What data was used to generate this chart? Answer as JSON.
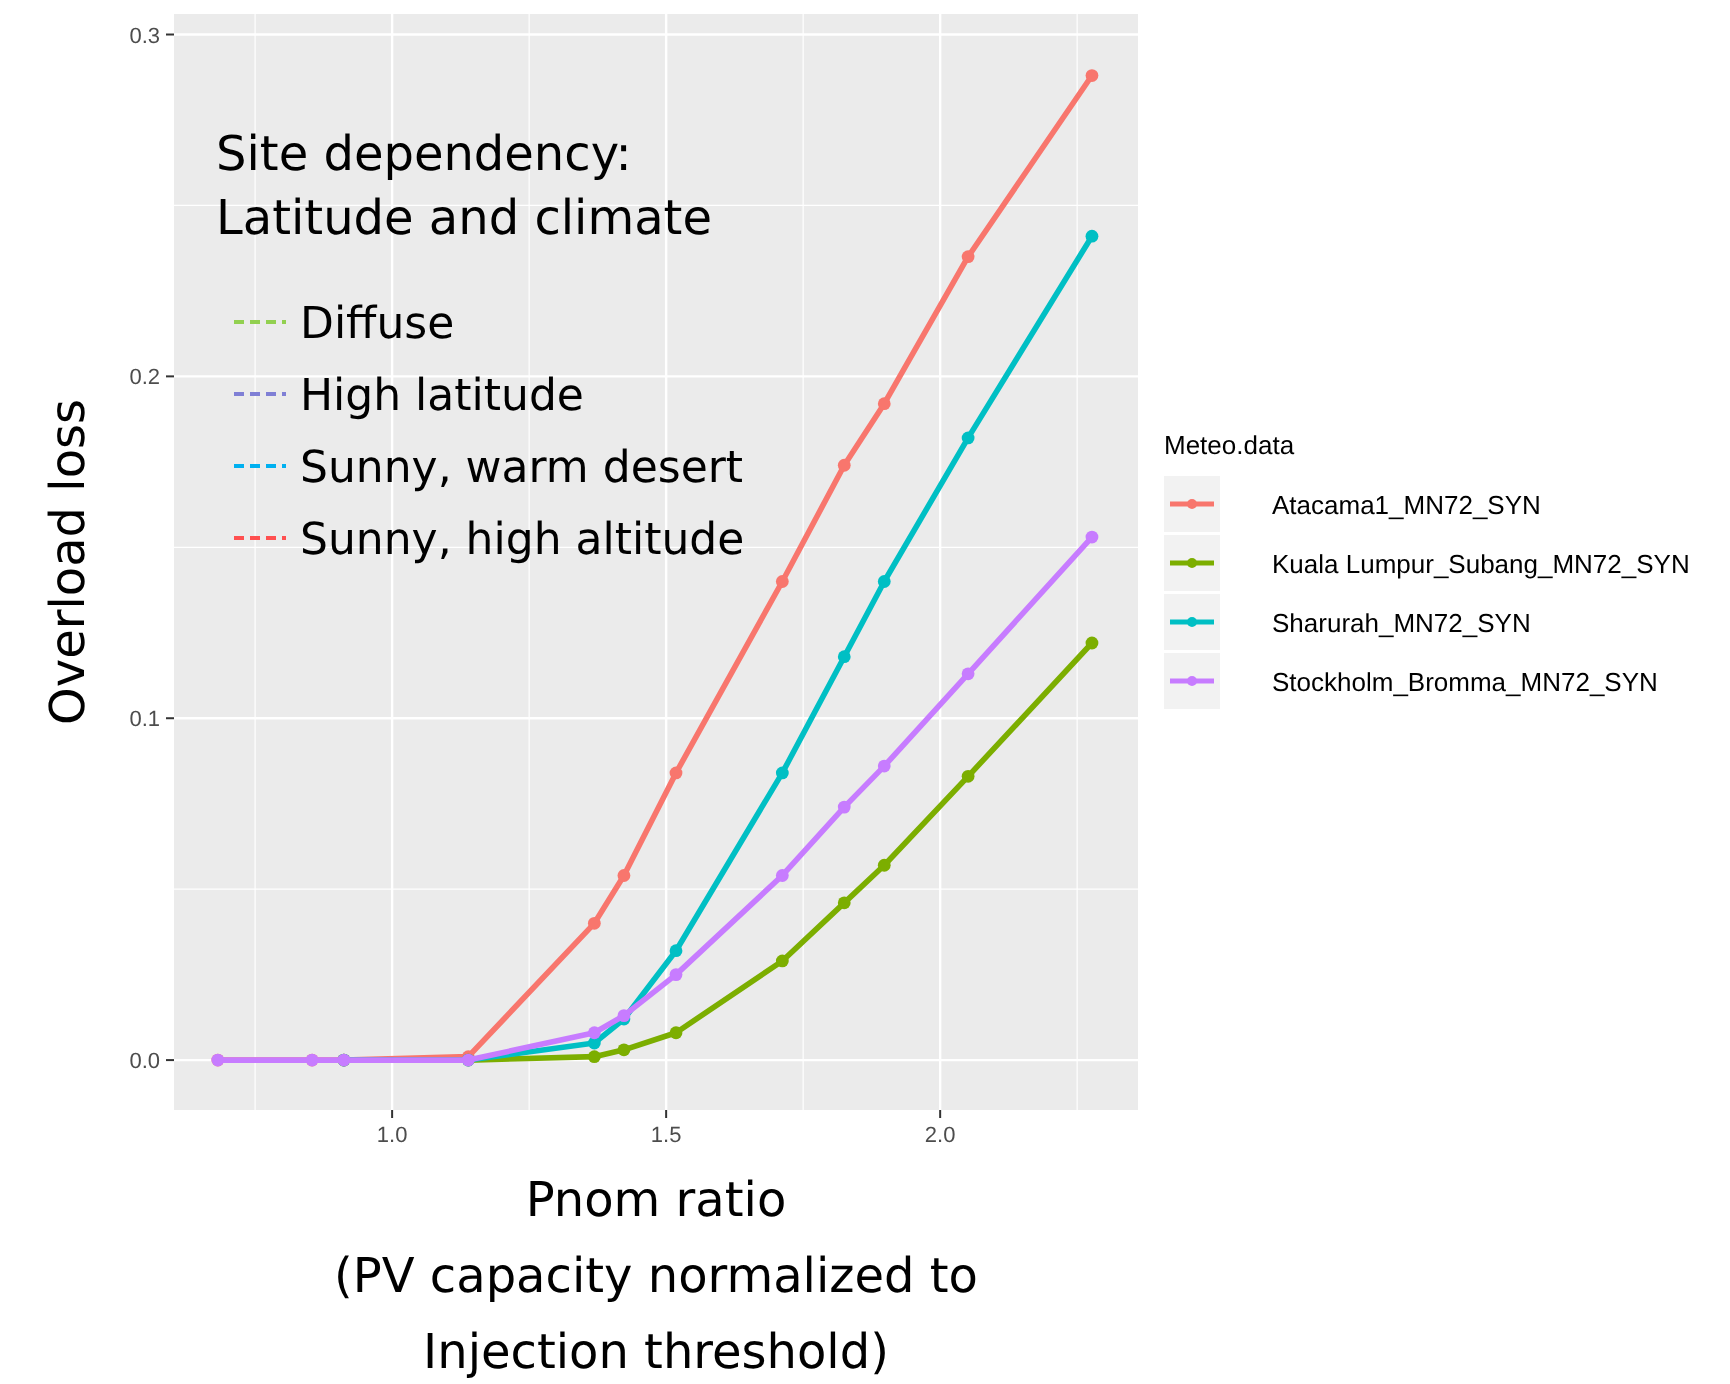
{
  "chart_data": {
    "type": "line",
    "xlabel": "Pnom ratio\n(PV capacity normalized to\nInjection threshold)",
    "ylabel": "Overload loss",
    "legend_title": "Meteo.data",
    "x": [
      0.682,
      0.854,
      0.912,
      1.139,
      1.369,
      1.423,
      1.518,
      1.712,
      1.825,
      1.898,
      2.051,
      2.277
    ],
    "series": [
      {
        "name": "Atacama1_MN72_SYN",
        "color": "#f8766d",
        "values": [
          0,
          0,
          0,
          0.001,
          0.04,
          0.054,
          0.084,
          0.14,
          0.174,
          0.192,
          0.235,
          0.288
        ]
      },
      {
        "name": "Kuala Lumpur_Subang_MN72_SYN",
        "color": "#7cae00",
        "values": [
          null,
          null,
          0,
          0,
          0.001,
          0.003,
          0.008,
          0.029,
          0.046,
          0.057,
          0.083,
          0.122
        ]
      },
      {
        "name": "Sharurah_MN72_SYN",
        "color": "#00bfc4",
        "values": [
          null,
          null,
          0,
          0,
          0.005,
          0.012,
          0.032,
          0.084,
          0.118,
          0.14,
          0.182,
          0.241
        ]
      },
      {
        "name": "Stockholm_Bromma_MN72_SYN",
        "color": "#c77cff",
        "values": [
          0,
          0,
          0,
          0,
          0.008,
          0.013,
          0.025,
          0.054,
          0.074,
          0.086,
          0.113,
          0.153
        ]
      }
    ],
    "xlim": [
      0.602,
      2.361
    ],
    "ylim": [
      -0.0146,
      0.306
    ],
    "xticks": [
      {
        "value": 1,
        "label": "1.0"
      },
      1.5,
      {
        "value": 2,
        "label": "2.0"
      }
    ],
    "yticks": [
      {
        "value": 0,
        "label": "0.0"
      },
      0.1,
      0.2,
      0.3
    ],
    "grid": true,
    "legend": "right",
    "marker": "circle",
    "line_style": "solid",
    "annotations": [
      "Site dependency:\nLatitude and climate",
      "Diffuse",
      "High latitude",
      "Sunny, warm desert",
      "Sunny, high altitude"
    ]
  }
}
